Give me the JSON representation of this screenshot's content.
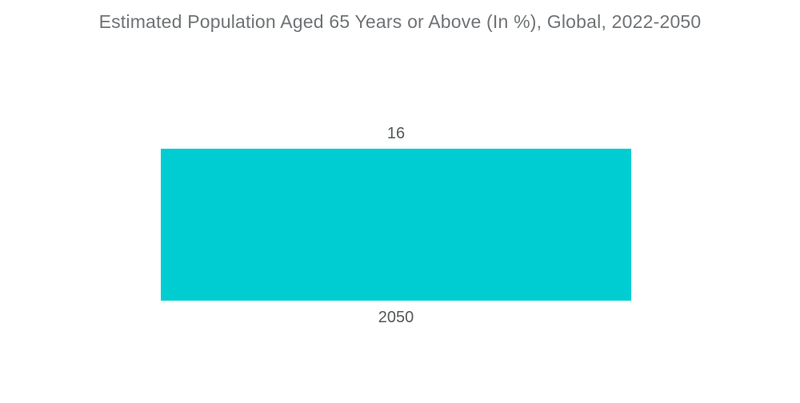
{
  "chart_data": {
    "type": "bar",
    "orientation": "vertical",
    "title": "Estimated Population Aged 65 Years or Above (In %), Global, 2022-2050",
    "categories": [
      "2050"
    ],
    "values": [
      16
    ],
    "value_labels": [
      "16"
    ],
    "xlabel": "",
    "ylabel": "",
    "ylim": [
      0,
      16
    ],
    "grid": false,
    "legend": false,
    "colors": {
      "bar": "#00CDD1",
      "title": "#6F7375",
      "label": "#54585A",
      "background": "#FFFFFF"
    }
  }
}
